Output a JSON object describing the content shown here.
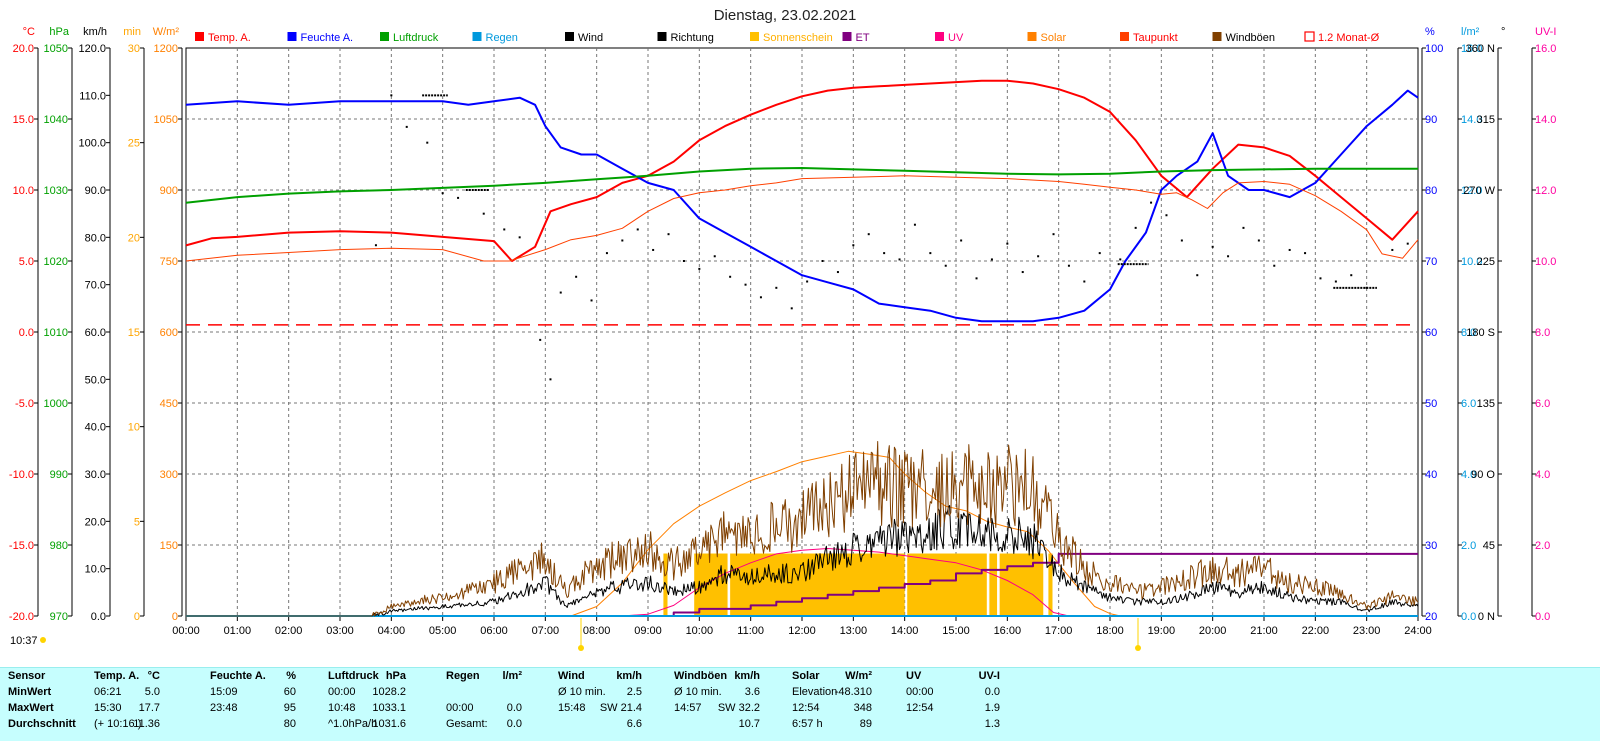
{
  "title": "Dienstag, 23.02.2021",
  "timestamp": "10:37",
  "left_axes": [
    {
      "unit": "°C",
      "color": "#ff0000",
      "min": -20,
      "max": 20,
      "step": 5,
      "decimals": 1
    },
    {
      "unit": "hPa",
      "color": "#00a000",
      "min": 970,
      "max": 1050,
      "step": 10,
      "decimals": 0
    },
    {
      "unit": "km/h",
      "color": "#000000",
      "min": 0,
      "max": 120,
      "step": 10,
      "decimals": 1
    },
    {
      "unit": "min",
      "color": "#ffa500",
      "min": 0,
      "max": 30,
      "step": 5,
      "decimals": 0
    },
    {
      "unit": "W/m²",
      "color": "#ff8000",
      "min": 0,
      "max": 1200,
      "step": 150,
      "decimals": 0
    }
  ],
  "right_axes": [
    {
      "unit": "%",
      "color": "#0000ff",
      "min": 20,
      "max": 100,
      "step": 10,
      "decimals": 0
    },
    {
      "unit": "l/m²",
      "color": "#0099dd",
      "min": 0,
      "max": 16,
      "step": 2,
      "decimals": 1
    },
    {
      "unit": "°",
      "color": "#000000",
      "ticks": [
        "0 N",
        "45",
        "90 O",
        "135",
        "180 S",
        "225",
        "270 W",
        "315",
        "360 N"
      ]
    },
    {
      "unit": "UV-I",
      "color": "#ff00a0",
      "min": 0,
      "max": 16,
      "step": 2,
      "decimals": 1
    }
  ],
  "legend": [
    {
      "label": "Temp. A.",
      "color": "#ff0000",
      "label_color": "#ff0000"
    },
    {
      "label": "Feuchte A.",
      "color": "#0000ff",
      "label_color": "#0000ff"
    },
    {
      "label": "Luftdruck",
      "color": "#00a000",
      "label_color": "#00a000"
    },
    {
      "label": "Regen",
      "color": "#0099dd",
      "label_color": "#0099dd"
    },
    {
      "label": "Wind",
      "color": "#000000",
      "label_color": "#000000"
    },
    {
      "label": "Richtung",
      "color": "#000000",
      "label_color": "#000000"
    },
    {
      "label": "Sonnenschein",
      "color": "#ffc000",
      "label_color": "#ffb000"
    },
    {
      "label": "ET",
      "color": "#800080",
      "label_color": "#800080"
    },
    {
      "label": "UV",
      "color": "#ff0080",
      "label_color": "#ff0080"
    },
    {
      "label": "Solar",
      "color": "#ff8000",
      "label_color": "#ff8000"
    },
    {
      "label": "Taupunkt",
      "color": "#ff4000",
      "label_color": "#ff0000"
    },
    {
      "label": "Windböen",
      "color": "#804000",
      "label_color": "#000000"
    },
    {
      "label": "1.2 Monat-Ø",
      "color": "#ff0000",
      "label_color": "#ff0000"
    }
  ],
  "chart_data": {
    "type": "line",
    "title": "Dienstag, 23.02.2021",
    "x_ticks": [
      "00:00",
      "01:00",
      "02:00",
      "03:00",
      "04:00",
      "05:00",
      "06:00",
      "07:00",
      "08:00",
      "09:00",
      "10:00",
      "11:00",
      "12:00",
      "13:00",
      "14:00",
      "15:00",
      "16:00",
      "17:00",
      "18:00",
      "19:00",
      "20:00",
      "21:00",
      "22:00",
      "23:00",
      "24:00"
    ],
    "x_unit": "hour",
    "grid": true,
    "legend_position": "top",
    "series": [
      {
        "name": "Temp. A.",
        "axis": "°C",
        "color": "#ff0000",
        "width": 2,
        "x": [
          0,
          0.5,
          1,
          2,
          3,
          4,
          5,
          6,
          6.35,
          6.8,
          7.1,
          7.5,
          8,
          8.5,
          9,
          9.5,
          10,
          10.5,
          11,
          11.5,
          12,
          12.5,
          13,
          13.5,
          14,
          14.5,
          15,
          15.5,
          16,
          16.5,
          17,
          17.5,
          18,
          18.5,
          19,
          19.5,
          20,
          20.5,
          21,
          21.5,
          22,
          22.5,
          23,
          23.5,
          24
        ],
        "y": [
          6.1,
          6.6,
          6.7,
          7.0,
          7.1,
          7.0,
          6.7,
          6.4,
          5.0,
          6.0,
          8.5,
          9.0,
          9.5,
          10.5,
          11.0,
          12.0,
          13.5,
          14.5,
          15.3,
          16.0,
          16.6,
          17.0,
          17.2,
          17.3,
          17.4,
          17.5,
          17.6,
          17.7,
          17.7,
          17.5,
          17.1,
          16.5,
          15.5,
          13.5,
          11.0,
          9.5,
          11.5,
          13.2,
          13.0,
          12.4,
          11.0,
          9.5,
          8.0,
          6.5,
          8.5
        ]
      },
      {
        "name": "Feuchte A.",
        "axis": "%",
        "color": "#0000ff",
        "width": 2,
        "x": [
          0,
          1,
          2,
          3,
          4,
          5,
          5.5,
          6,
          6.5,
          6.8,
          7,
          7.3,
          7.7,
          8,
          8.5,
          9,
          9.5,
          10,
          10.5,
          11,
          11.5,
          12,
          12.5,
          13,
          13.5,
          14,
          14.5,
          15,
          15.5,
          16,
          16.5,
          17,
          17.5,
          18,
          18.3,
          18.7,
          19,
          19.3,
          19.7,
          20,
          20.3,
          20.7,
          21,
          21.5,
          22,
          22.5,
          23,
          23.5,
          23.8,
          24
        ],
        "y": [
          92,
          92.5,
          92,
          92.5,
          92.5,
          92.5,
          92,
          92.5,
          93,
          92,
          89,
          86,
          85,
          85,
          83,
          81,
          80,
          76,
          74,
          72,
          70,
          68,
          67,
          66,
          64,
          63.5,
          63,
          62,
          61.5,
          61.5,
          61.5,
          62,
          63,
          66,
          70,
          74,
          80,
          82,
          84,
          88,
          82,
          80,
          80,
          79,
          81,
          85,
          89,
          92,
          94,
          93
        ]
      },
      {
        "name": "Luftdruck",
        "axis": "hPa",
        "color": "#00a000",
        "width": 2,
        "x": [
          0,
          1,
          2,
          3,
          4,
          5,
          6,
          7,
          8,
          9,
          10,
          11,
          12,
          13,
          14,
          15,
          16,
          17,
          18,
          19,
          20,
          21,
          22,
          23,
          24
        ],
        "y": [
          1028.2,
          1029,
          1029.5,
          1029.8,
          1030,
          1030.3,
          1030.6,
          1031,
          1031.5,
          1032,
          1032.6,
          1033,
          1033.1,
          1032.9,
          1032.7,
          1032.5,
          1032.3,
          1032.2,
          1032.3,
          1032.6,
          1032.8,
          1032.9,
          1033,
          1033,
          1033
        ]
      },
      {
        "name": "Taupunkt",
        "axis": "°C",
        "color": "#ff4000",
        "width": 1,
        "x": [
          0,
          1,
          2,
          3,
          4,
          5,
          5.8,
          6.3,
          7,
          7.5,
          8,
          8.5,
          9,
          9.5,
          10,
          10.5,
          11,
          11.5,
          12,
          13,
          14,
          15,
          16,
          17,
          17.5,
          18,
          18.5,
          19,
          19.3,
          19.6,
          19.9,
          20.2,
          20.5,
          21,
          21.5,
          22,
          22.5,
          23,
          23.3,
          23.7,
          24
        ],
        "y": [
          5.0,
          5.4,
          5.6,
          5.8,
          5.9,
          5.8,
          5.0,
          5.0,
          5.8,
          6.5,
          6.8,
          7.3,
          8.5,
          9.4,
          9.8,
          10.0,
          10.3,
          10.5,
          10.8,
          10.9,
          11.0,
          10.9,
          10.8,
          10.6,
          10.4,
          10.2,
          10.0,
          9.7,
          9.8,
          9.3,
          8.7,
          9.8,
          10.5,
          10.6,
          10.4,
          9.6,
          8.5,
          7.2,
          5.5,
          5.2,
          6.5
        ]
      },
      {
        "name": "1.2 Monat-Ø",
        "axis": "°C",
        "color": "#ff0000",
        "width": 1.5,
        "dashed": true,
        "x": [
          0,
          24
        ],
        "y": [
          0.5,
          0.5
        ]
      },
      {
        "name": "Solar",
        "axis": "W/m²",
        "color": "#ff8000",
        "width": 1,
        "x": [
          0,
          7.5,
          8,
          8.5,
          9,
          9.5,
          10,
          10.5,
          11,
          11.5,
          12,
          12.5,
          12.9,
          13.3,
          13.7,
          14,
          14.4,
          14.8,
          15.2,
          15.6,
          16,
          16.4,
          16.8,
          17,
          17.3,
          17.7,
          18,
          18.2,
          24
        ],
        "y": [
          0,
          0,
          20,
          70,
          140,
          195,
          232,
          260,
          286,
          305,
          326,
          338,
          348,
          342,
          335,
          300,
          262,
          232,
          222,
          200,
          188,
          178,
          138,
          110,
          70,
          20,
          5,
          0,
          0
        ]
      },
      {
        "name": "UV",
        "axis": "UV-I",
        "color": "#ff0080",
        "width": 1,
        "x": [
          0,
          8.5,
          9,
          9.5,
          10,
          10.5,
          11,
          11.5,
          12,
          12.5,
          13,
          13.5,
          14,
          14.5,
          15,
          15.5,
          16,
          16.5,
          16.9,
          17.2,
          24
        ],
        "y": [
          0,
          0,
          0.05,
          0.3,
          0.8,
          1.2,
          1.5,
          1.75,
          1.85,
          1.9,
          1.85,
          1.8,
          1.7,
          1.6,
          1.5,
          1.3,
          1.0,
          0.6,
          0.1,
          0,
          0
        ]
      },
      {
        "name": "ET",
        "axis": "l/m²",
        "color": "#800080",
        "width": 2,
        "step": true,
        "x": [
          0,
          8.6,
          9.5,
          10,
          10.4,
          11,
          11.5,
          12,
          12.5,
          13,
          13.5,
          14,
          14.5,
          15,
          15.5,
          16,
          16.5,
          17,
          24
        ],
        "y": [
          0,
          0,
          0.1,
          0.2,
          0.2,
          0.3,
          0.4,
          0.5,
          0.6,
          0.7,
          0.8,
          0.9,
          1.0,
          1.2,
          1.3,
          1.4,
          1.5,
          1.75,
          1.75
        ]
      },
      {
        "name": "Regen",
        "axis": "l/m²",
        "color": "#0099dd",
        "width": 2,
        "x": [
          0,
          24
        ],
        "y": [
          0,
          0
        ]
      },
      {
        "name": "Wind",
        "axis": "km/h",
        "color": "#000000",
        "width": 1,
        "noise": true,
        "x": [
          0,
          3.6,
          4,
          5,
          6,
          6.5,
          7,
          7.4,
          7.8,
          8.3,
          9,
          9.5,
          10,
          10.5,
          11,
          11.5,
          12,
          12.5,
          13,
          13.5,
          14,
          14.5,
          15,
          15.5,
          16,
          16.5,
          17,
          17.5,
          18,
          18.5,
          19,
          19.5,
          20,
          20.5,
          21,
          21.5,
          22,
          22.5,
          23,
          23.5,
          24
        ],
        "y": [
          0,
          0,
          1,
          2,
          3,
          5,
          7,
          2,
          4,
          6,
          7,
          5,
          6,
          9,
          8,
          9,
          9,
          12,
          14,
          17,
          16,
          18,
          19,
          17,
          18,
          16,
          9,
          6,
          4,
          3,
          3,
          4,
          6,
          5,
          6,
          4,
          3,
          3,
          1,
          3,
          2
        ]
      },
      {
        "name": "Windböen",
        "axis": "km/h",
        "color": "#804000",
        "width": 1,
        "noise": true,
        "x": [
          0,
          3.6,
          4,
          5,
          6,
          6.5,
          7,
          7.4,
          7.8,
          8.3,
          9,
          9.5,
          10,
          10.5,
          11,
          11.5,
          12,
          12.5,
          13,
          13.5,
          14,
          14.5,
          15,
          15.5,
          16,
          16.5,
          17,
          17.5,
          18,
          18.5,
          19,
          19.5,
          20,
          20.5,
          21,
          21.5,
          22,
          22.5,
          23,
          23.5,
          24
        ],
        "y": [
          0,
          0,
          2,
          4,
          7,
          10,
          12,
          5,
          9,
          12,
          14,
          11,
          13,
          17,
          16,
          19,
          20,
          24,
          26,
          28,
          27,
          27,
          29,
          26,
          28,
          26,
          16,
          10,
          7,
          5,
          6,
          8,
          10,
          9,
          10,
          7,
          6,
          5,
          2,
          4,
          3
        ]
      }
    ],
    "sunshine_blocks": {
      "axis": "min",
      "color": "#ffc000",
      "x_start": [
        9.3,
        9.9,
        10.6,
        14.05,
        15.65,
        15.85,
        16.8
      ],
      "x_end": [
        9.38,
        10.55,
        14.0,
        15.6,
        15.8,
        16.7,
        16.88
      ],
      "y": [
        3.3,
        3.3,
        3.3,
        3.3,
        3.3,
        3.3,
        3.3
      ]
    },
    "direction_points": {
      "axis": "°",
      "name": "Richtung",
      "color": "#000000",
      "x": [
        3.7,
        4.0,
        4.3,
        4.7,
        5.0,
        5.3,
        5.8,
        6.2,
        6.5,
        6.9,
        7.1,
        7.3,
        7.6,
        7.9,
        8.2,
        8.5,
        8.8,
        9.1,
        9.4,
        9.7,
        10.0,
        10.3,
        10.6,
        10.9,
        11.2,
        11.5,
        11.8,
        12.1,
        12.4,
        12.7,
        13.0,
        13.3,
        13.6,
        13.9,
        14.2,
        14.5,
        14.8,
        15.1,
        15.4,
        15.7,
        16.0,
        16.3,
        16.6,
        16.9,
        17.2,
        17.5,
        17.8,
        18.2,
        18.5,
        18.8,
        19.1,
        19.4,
        19.7,
        20.0,
        20.3,
        20.6,
        20.9,
        21.2,
        21.5,
        21.8,
        22.1,
        22.4,
        22.7,
        23.0,
        23.5,
        23.8
      ],
      "y": [
        235,
        330,
        310,
        300,
        268,
        265,
        255,
        245,
        240,
        175,
        150,
        205,
        215,
        200,
        230,
        238,
        245,
        232,
        242,
        225,
        220,
        228,
        215,
        210,
        202,
        208,
        195,
        212,
        225,
        218,
        235,
        242,
        230,
        226,
        248,
        230,
        222,
        238,
        214,
        226,
        236,
        218,
        228,
        242,
        222,
        212,
        230,
        226,
        246,
        262,
        254,
        238,
        216,
        234,
        228,
        246,
        238,
        222,
        232,
        230,
        214,
        212,
        216,
        208,
        232,
        236
      ],
      "segments": [
        {
          "x0": 4.6,
          "x1": 5.1,
          "y": 330
        },
        {
          "x0": 5.45,
          "x1": 5.9,
          "y": 270
        },
        {
          "x0": 18.15,
          "x1": 18.75,
          "y": 223
        },
        {
          "x0": 22.35,
          "x1": 23.2,
          "y": 208
        }
      ]
    }
  },
  "stats": {
    "header": [
      "Sensor",
      "Temp. A.",
      "°C",
      "Feuchte A.",
      "%",
      "Luftdruck",
      "hPa",
      "Regen",
      "l/m²",
      "Wind",
      "km/h",
      "Windböen",
      "km/h",
      "Solar",
      "W/m²",
      "UV",
      "UV-I"
    ],
    "rows": [
      [
        "MinWert",
        "06:21",
        "5.0",
        "15:09",
        "60",
        "00:00",
        "1028.2",
        "",
        "",
        "Ø 10 min.",
        "2.5",
        "Ø 10 min.",
        "3.6",
        "Elevation",
        "-48.310",
        "00:00",
        "0.0"
      ],
      [
        "MaxWert",
        "15:30",
        "17.7",
        "23:48",
        "95",
        "10:48",
        "1033.1",
        "00:00",
        "0.0",
        "15:48",
        "SW 21.4",
        "14:57",
        "SW 32.2",
        "12:54",
        "348",
        "12:54",
        "1.9"
      ],
      [
        "Durchschnitt",
        "(+ 10:16 )",
        "11.36",
        "",
        "80",
        "^1.0hPa/h",
        "1031.6",
        "Gesamt:",
        "0.0",
        "",
        "6.6",
        "",
        "10.7",
        "6:57 h",
        "89",
        "",
        "1.3"
      ]
    ]
  }
}
